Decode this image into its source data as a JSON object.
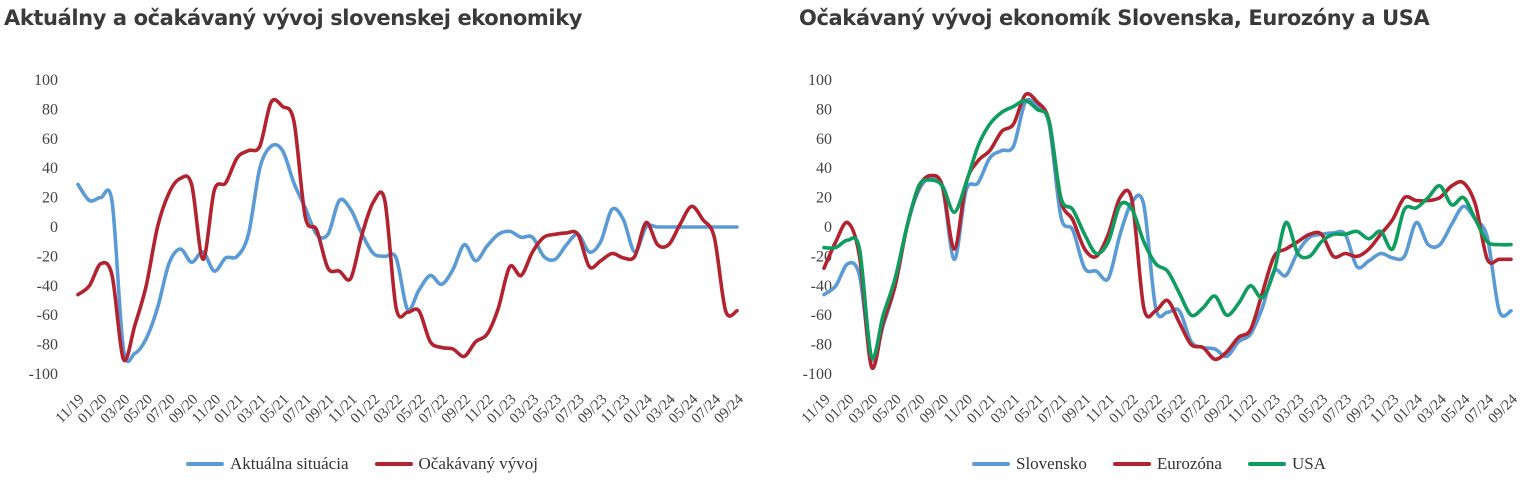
{
  "colors": {
    "blue": "#5B9BD5",
    "red": "#B2232F",
    "green": "#0F9D5F",
    "axis_text": "#444444"
  },
  "chart_data": [
    {
      "type": "line",
      "title": "Aktuálny a očakávaný vývoj slovenskej ekonomiky",
      "ylim": [
        -100,
        100
      ],
      "yticks": [
        100,
        80,
        60,
        40,
        20,
        0,
        -20,
        -40,
        -60,
        -80,
        -100
      ],
      "x": [
        "11/19",
        "12/19",
        "01/20",
        "02/20",
        "03/20",
        "04/20",
        "05/20",
        "06/20",
        "07/20",
        "08/20",
        "09/20",
        "10/20",
        "11/20",
        "12/20",
        "01/21",
        "02/21",
        "03/21",
        "04/21",
        "05/21",
        "06/21",
        "07/21",
        "08/21",
        "09/21",
        "10/21",
        "11/21",
        "12/21",
        "01/22",
        "02/22",
        "03/22",
        "04/22",
        "05/22",
        "06/22",
        "07/22",
        "08/22",
        "09/22",
        "10/22",
        "11/22",
        "12/22",
        "01/23",
        "02/23",
        "03/23",
        "04/23",
        "05/23",
        "06/23",
        "07/23",
        "08/23",
        "09/23",
        "10/23",
        "11/23",
        "12/23",
        "01/24",
        "02/24",
        "03/24",
        "04/24",
        "05/24",
        "06/24",
        "07/24",
        "08/24",
        "09/24"
      ],
      "x_tick_labels": [
        "11/19",
        "01/20",
        "03/20",
        "05/20",
        "07/20",
        "09/20",
        "11/20",
        "01/21",
        "03/21",
        "05/21",
        "07/21",
        "09/21",
        "11/21",
        "01/22",
        "03/22",
        "05/22",
        "07/22",
        "09/22",
        "11/22",
        "01/23",
        "03/23",
        "05/23",
        "07/23",
        "09/23",
        "11/23",
        "01/24",
        "03/24",
        "05/24",
        "07/24",
        "09/24"
      ],
      "grid": false,
      "legend_position": "bottom",
      "series": [
        {
          "name": "Aktuálna situácia",
          "color": "#5B9BD5",
          "values": [
            29,
            18,
            20,
            17,
            -83,
            -86,
            -76,
            -55,
            -25,
            -15,
            -24,
            -17,
            -30,
            -21,
            -20,
            -5,
            40,
            55,
            52,
            30,
            13,
            -5,
            -5,
            18,
            12,
            -5,
            -18,
            -20,
            -21,
            -56,
            -43,
            -33,
            -39,
            -29,
            -12,
            -23,
            -13,
            -5,
            -3,
            -7,
            -7,
            -20,
            -22,
            -12,
            -5,
            -17,
            -10,
            12,
            5,
            -17,
            0,
            0,
            0,
            0,
            0,
            0,
            0,
            0,
            0
          ]
        },
        {
          "name": "Očakávaný vývoj",
          "color": "#B2232F",
          "values": [
            -46,
            -40,
            -25,
            -33,
            -90,
            -67,
            -40,
            0,
            23,
            33,
            29,
            -22,
            25,
            30,
            47,
            52,
            55,
            85,
            82,
            72,
            7,
            -2,
            -28,
            -30,
            -35,
            -5,
            17,
            18,
            -55,
            -58,
            -57,
            -78,
            -82,
            -83,
            -88,
            -78,
            -73,
            -55,
            -27,
            -33,
            -17,
            -7,
            -5,
            -4,
            -5,
            -27,
            -23,
            -18,
            -21,
            -20,
            3,
            -12,
            -12,
            2,
            14,
            5,
            -7,
            -57,
            -57
          ]
        }
      ]
    },
    {
      "type": "line",
      "title": "Očakávaný vývoj ekonomík Slovenska, Eurozóny a USA",
      "ylim": [
        -100,
        100
      ],
      "yticks": [
        100,
        80,
        60,
        40,
        20,
        0,
        -20,
        -40,
        -60,
        -80,
        -100
      ],
      "x": [
        "11/19",
        "12/19",
        "01/20",
        "02/20",
        "03/20",
        "04/20",
        "05/20",
        "06/20",
        "07/20",
        "08/20",
        "09/20",
        "10/20",
        "11/20",
        "12/20",
        "01/21",
        "02/21",
        "03/21",
        "04/21",
        "05/21",
        "06/21",
        "07/21",
        "08/21",
        "09/21",
        "10/21",
        "11/21",
        "12/21",
        "01/22",
        "02/22",
        "03/22",
        "04/22",
        "05/22",
        "06/22",
        "07/22",
        "08/22",
        "09/22",
        "10/22",
        "11/22",
        "12/22",
        "01/23",
        "02/23",
        "03/23",
        "04/23",
        "05/23",
        "06/23",
        "07/23",
        "08/23",
        "09/23",
        "10/23",
        "11/23",
        "12/23",
        "01/24",
        "02/24",
        "03/24",
        "04/24",
        "05/24",
        "06/24",
        "07/24",
        "08/24",
        "09/24"
      ],
      "x_tick_labels": [
        "11/19",
        "01/20",
        "03/20",
        "05/20",
        "07/20",
        "09/20",
        "11/20",
        "01/21",
        "03/21",
        "05/21",
        "07/21",
        "09/21",
        "11/21",
        "01/22",
        "03/22",
        "05/22",
        "07/22",
        "09/22",
        "11/22",
        "01/23",
        "03/23",
        "05/23",
        "07/23",
        "09/23",
        "11/23",
        "01/24",
        "03/24",
        "05/24",
        "07/24",
        "09/24"
      ],
      "grid": false,
      "legend_position": "bottom",
      "series": [
        {
          "name": "Slovensko",
          "color": "#5B9BD5",
          "values": [
            -46,
            -40,
            -25,
            -33,
            -90,
            -67,
            -40,
            0,
            25,
            33,
            27,
            -22,
            25,
            30,
            47,
            52,
            55,
            85,
            82,
            70,
            7,
            -2,
            -28,
            -30,
            -35,
            -5,
            17,
            15,
            -55,
            -58,
            -57,
            -78,
            -82,
            -83,
            -88,
            -78,
            -73,
            -55,
            -30,
            -33,
            -17,
            -7,
            -5,
            -4,
            -5,
            -27,
            -23,
            -18,
            -21,
            -20,
            3,
            -12,
            -12,
            2,
            14,
            5,
            -7,
            -57,
            -57
          ]
        },
        {
          "name": "Eurozóna",
          "color": "#B2232F",
          "values": [
            -28,
            -10,
            3,
            -20,
            -95,
            -65,
            -40,
            0,
            27,
            35,
            28,
            -15,
            30,
            45,
            52,
            65,
            70,
            90,
            85,
            72,
            18,
            5,
            -15,
            -20,
            -5,
            20,
            18,
            -55,
            -57,
            -50,
            -65,
            -80,
            -82,
            -90,
            -85,
            -75,
            -70,
            -45,
            -20,
            -15,
            -10,
            -5,
            -5,
            -20,
            -18,
            -20,
            -15,
            -5,
            5,
            20,
            18,
            18,
            20,
            28,
            30,
            15,
            -22,
            -22,
            -22
          ]
        },
        {
          "name": "USA",
          "color": "#0F9D5F",
          "values": [
            -14,
            -14,
            -9,
            -15,
            -88,
            -60,
            -35,
            0,
            28,
            32,
            28,
            10,
            30,
            55,
            70,
            78,
            82,
            86,
            80,
            72,
            20,
            12,
            -5,
            -18,
            -10,
            15,
            12,
            -10,
            -25,
            -30,
            -45,
            -60,
            -55,
            -47,
            -60,
            -52,
            -40,
            -48,
            -30,
            3,
            -18,
            -20,
            -10,
            -5,
            -5,
            -3,
            -8,
            -3,
            -15,
            12,
            13,
            20,
            28,
            15,
            20,
            5,
            -10,
            -12,
            -12
          ]
        }
      ]
    }
  ]
}
